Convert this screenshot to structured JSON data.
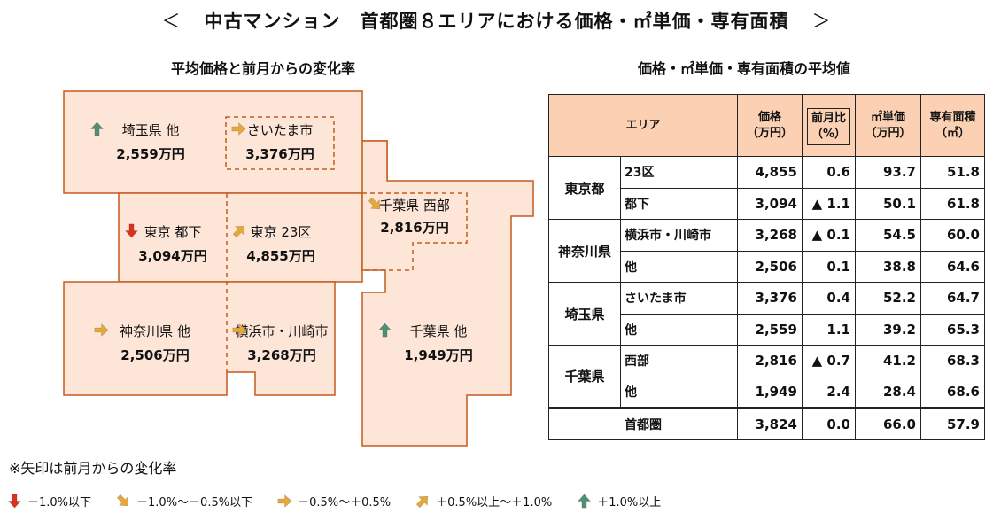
{
  "title": {
    "left": "＜",
    "text": "中古マンション　首都圏８エリアにおける価格・㎡単価・専有面積",
    "right": "＞"
  },
  "map_section": {
    "heading": "平均価格と前月からの変化率",
    "regions": [
      {
        "id": "saitama-other",
        "name": "埼玉県 他",
        "price": "2,559万円",
        "trend": "up-strong"
      },
      {
        "id": "saitama-city",
        "name": "さいたま市",
        "price": "3,376万円",
        "trend": "flat"
      },
      {
        "id": "tokyo-toka",
        "name": "東京 都下",
        "price": "3,094万円",
        "trend": "down-strong"
      },
      {
        "id": "tokyo-23",
        "name": "東京 23区",
        "price": "4,855万円",
        "trend": "up-mild"
      },
      {
        "id": "chiba-west",
        "name": "千葉県 西部",
        "price": "2,816万円",
        "trend": "down-mild"
      },
      {
        "id": "kanagawa-other",
        "name": "神奈川県 他",
        "price": "2,506万円",
        "trend": "flat"
      },
      {
        "id": "yokohama",
        "name": "横浜市・川崎市",
        "price": "3,268万円",
        "trend": "flat"
      },
      {
        "id": "chiba-other",
        "name": "千葉県 他",
        "price": "1,949万円",
        "trend": "up-strong"
      }
    ]
  },
  "table_section": {
    "heading": "価格・㎡単価・専有面積の平均値",
    "headers": {
      "area": "エリア",
      "price_l1": "価格",
      "price_l2": "（万円）",
      "chg_l1": "前月比",
      "chg_l2": "（%）",
      "unit_l1": "㎡単価",
      "unit_l2": "（万円）",
      "size_l1": "専有面積",
      "size_l2": "（㎡）"
    },
    "groups": [
      {
        "pref": "東京都",
        "rows": [
          {
            "sub": "23区",
            "price": "4,855",
            "change": "0.6",
            "unit": "93.7",
            "size": "51.8"
          },
          {
            "sub": "都下",
            "price": "3,094",
            "change": "▲ 1.1",
            "unit": "50.1",
            "size": "61.8"
          }
        ]
      },
      {
        "pref": "神奈川県",
        "rows": [
          {
            "sub": "横浜市・川崎市",
            "price": "3,268",
            "change": "▲ 0.1",
            "unit": "54.5",
            "size": "60.0"
          },
          {
            "sub": "他",
            "price": "2,506",
            "change": "0.1",
            "unit": "38.8",
            "size": "64.6"
          }
        ]
      },
      {
        "pref": "埼玉県",
        "rows": [
          {
            "sub": "さいたま市",
            "price": "3,376",
            "change": "0.4",
            "unit": "52.2",
            "size": "64.7"
          },
          {
            "sub": "他",
            "price": "2,559",
            "change": "1.1",
            "unit": "39.2",
            "size": "65.3"
          }
        ]
      },
      {
        "pref": "千葉県",
        "rows": [
          {
            "sub": "西部",
            "price": "2,816",
            "change": "▲ 0.7",
            "unit": "41.2",
            "size": "68.3"
          },
          {
            "sub": "他",
            "price": "1,949",
            "change": "2.4",
            "unit": "28.4",
            "size": "68.6"
          }
        ]
      }
    ],
    "total": {
      "label": "首都圏",
      "price": "3,824",
      "change": "0.0",
      "unit": "66.0",
      "size": "57.9"
    }
  },
  "note": "※矢印は前月からの変化率",
  "legend": [
    {
      "trend": "down-strong",
      "label": "－1.0%以下"
    },
    {
      "trend": "down-mild",
      "label": "－1.0%～－0.5%以下"
    },
    {
      "trend": "flat",
      "label": "－0.5%～＋0.5%"
    },
    {
      "trend": "up-mild",
      "label": "＋0.5%以上～＋1.0%"
    },
    {
      "trend": "up-strong",
      "label": "＋1.0%以上"
    }
  ],
  "colors": {
    "region_fill": "#fde6d8",
    "region_stroke": "#c65a1e",
    "header_fill": "#fbd0b3",
    "arrow_down_strong": "#d9331f",
    "arrow_down_mild": "#e5a93b",
    "arrow_flat": "#e5a93b",
    "arrow_up_mild": "#e5a93b",
    "arrow_up_strong": "#4f8f74"
  }
}
